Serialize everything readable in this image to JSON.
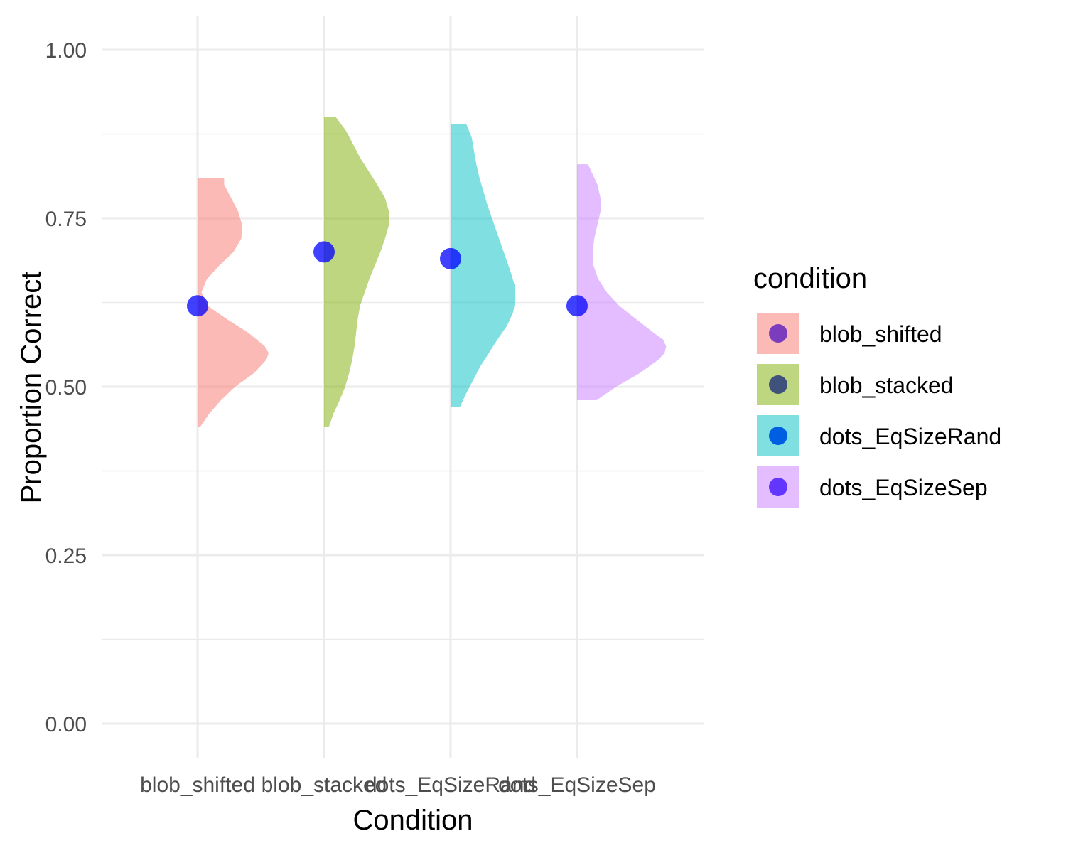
{
  "chart_data": {
    "type": "violin",
    "xlabel": "Condition",
    "ylabel": "Proportion Correct",
    "ylim": [
      0,
      1
    ],
    "y_ticks": [
      "0.00",
      "0.25",
      "0.50",
      "0.75",
      "1.00"
    ],
    "grid": true,
    "legend": {
      "title": "condition",
      "placement": "right"
    },
    "point_color": "#0000ff",
    "series": [
      {
        "name": "blob_shifted",
        "fill_color": "#f8766d",
        "legend_point_color": "#7b3dbd",
        "mean": 0.62,
        "range": [
          0.44,
          0.81
        ],
        "density": [
          [
            0.44,
            0.03
          ],
          [
            0.46,
            0.15
          ],
          [
            0.48,
            0.3
          ],
          [
            0.5,
            0.48
          ],
          [
            0.52,
            0.72
          ],
          [
            0.54,
            0.88
          ],
          [
            0.55,
            0.91
          ],
          [
            0.56,
            0.86
          ],
          [
            0.58,
            0.65
          ],
          [
            0.6,
            0.38
          ],
          [
            0.62,
            0.13
          ],
          [
            0.64,
            0.05
          ],
          [
            0.66,
            0.12
          ],
          [
            0.68,
            0.28
          ],
          [
            0.7,
            0.46
          ],
          [
            0.72,
            0.56
          ],
          [
            0.74,
            0.57
          ],
          [
            0.76,
            0.52
          ],
          [
            0.78,
            0.43
          ],
          [
            0.8,
            0.34
          ],
          [
            0.81,
            0.34
          ]
        ]
      },
      {
        "name": "blob_stacked",
        "fill_color": "#7cae00",
        "legend_point_color": "#3e527c",
        "mean": 0.7,
        "range": [
          0.44,
          0.9
        ],
        "density": [
          [
            0.44,
            0.06
          ],
          [
            0.46,
            0.12
          ],
          [
            0.48,
            0.2
          ],
          [
            0.5,
            0.27
          ],
          [
            0.52,
            0.32
          ],
          [
            0.54,
            0.36
          ],
          [
            0.56,
            0.39
          ],
          [
            0.58,
            0.41
          ],
          [
            0.6,
            0.43
          ],
          [
            0.62,
            0.46
          ],
          [
            0.64,
            0.52
          ],
          [
            0.66,
            0.58
          ],
          [
            0.68,
            0.65
          ],
          [
            0.7,
            0.72
          ],
          [
            0.72,
            0.78
          ],
          [
            0.74,
            0.83
          ],
          [
            0.76,
            0.83
          ],
          [
            0.78,
            0.78
          ],
          [
            0.8,
            0.68
          ],
          [
            0.82,
            0.57
          ],
          [
            0.84,
            0.46
          ],
          [
            0.86,
            0.37
          ],
          [
            0.88,
            0.28
          ],
          [
            0.9,
            0.15
          ]
        ]
      },
      {
        "name": "dots_EqSizeRand",
        "fill_color": "#00bfc4",
        "legend_point_color": "#005ee2",
        "mean": 0.69,
        "range": [
          0.47,
          0.89
        ],
        "density": [
          [
            0.47,
            0.12
          ],
          [
            0.49,
            0.2
          ],
          [
            0.51,
            0.29
          ],
          [
            0.53,
            0.38
          ],
          [
            0.55,
            0.49
          ],
          [
            0.57,
            0.6
          ],
          [
            0.59,
            0.72
          ],
          [
            0.61,
            0.8
          ],
          [
            0.63,
            0.83
          ],
          [
            0.65,
            0.82
          ],
          [
            0.67,
            0.77
          ],
          [
            0.69,
            0.71
          ],
          [
            0.71,
            0.65
          ],
          [
            0.73,
            0.59
          ],
          [
            0.75,
            0.53
          ],
          [
            0.77,
            0.47
          ],
          [
            0.79,
            0.42
          ],
          [
            0.81,
            0.37
          ],
          [
            0.83,
            0.33
          ],
          [
            0.85,
            0.3
          ],
          [
            0.87,
            0.27
          ],
          [
            0.89,
            0.2
          ]
        ]
      },
      {
        "name": "dots_EqSizeSep",
        "fill_color": "#c77cff",
        "legend_point_color": "#6236ff",
        "mean": 0.62,
        "range": [
          0.48,
          0.83
        ],
        "density": [
          [
            0.48,
            0.25
          ],
          [
            0.5,
            0.5
          ],
          [
            0.52,
            0.8
          ],
          [
            0.54,
            1.04
          ],
          [
            0.55,
            1.12
          ],
          [
            0.56,
            1.14
          ],
          [
            0.57,
            1.1
          ],
          [
            0.58,
            0.98
          ],
          [
            0.6,
            0.76
          ],
          [
            0.62,
            0.54
          ],
          [
            0.64,
            0.38
          ],
          [
            0.66,
            0.27
          ],
          [
            0.68,
            0.21
          ],
          [
            0.7,
            0.2
          ],
          [
            0.72,
            0.22
          ],
          [
            0.74,
            0.26
          ],
          [
            0.76,
            0.3
          ],
          [
            0.78,
            0.3
          ],
          [
            0.8,
            0.26
          ],
          [
            0.82,
            0.18
          ],
          [
            0.83,
            0.14
          ]
        ]
      }
    ]
  }
}
